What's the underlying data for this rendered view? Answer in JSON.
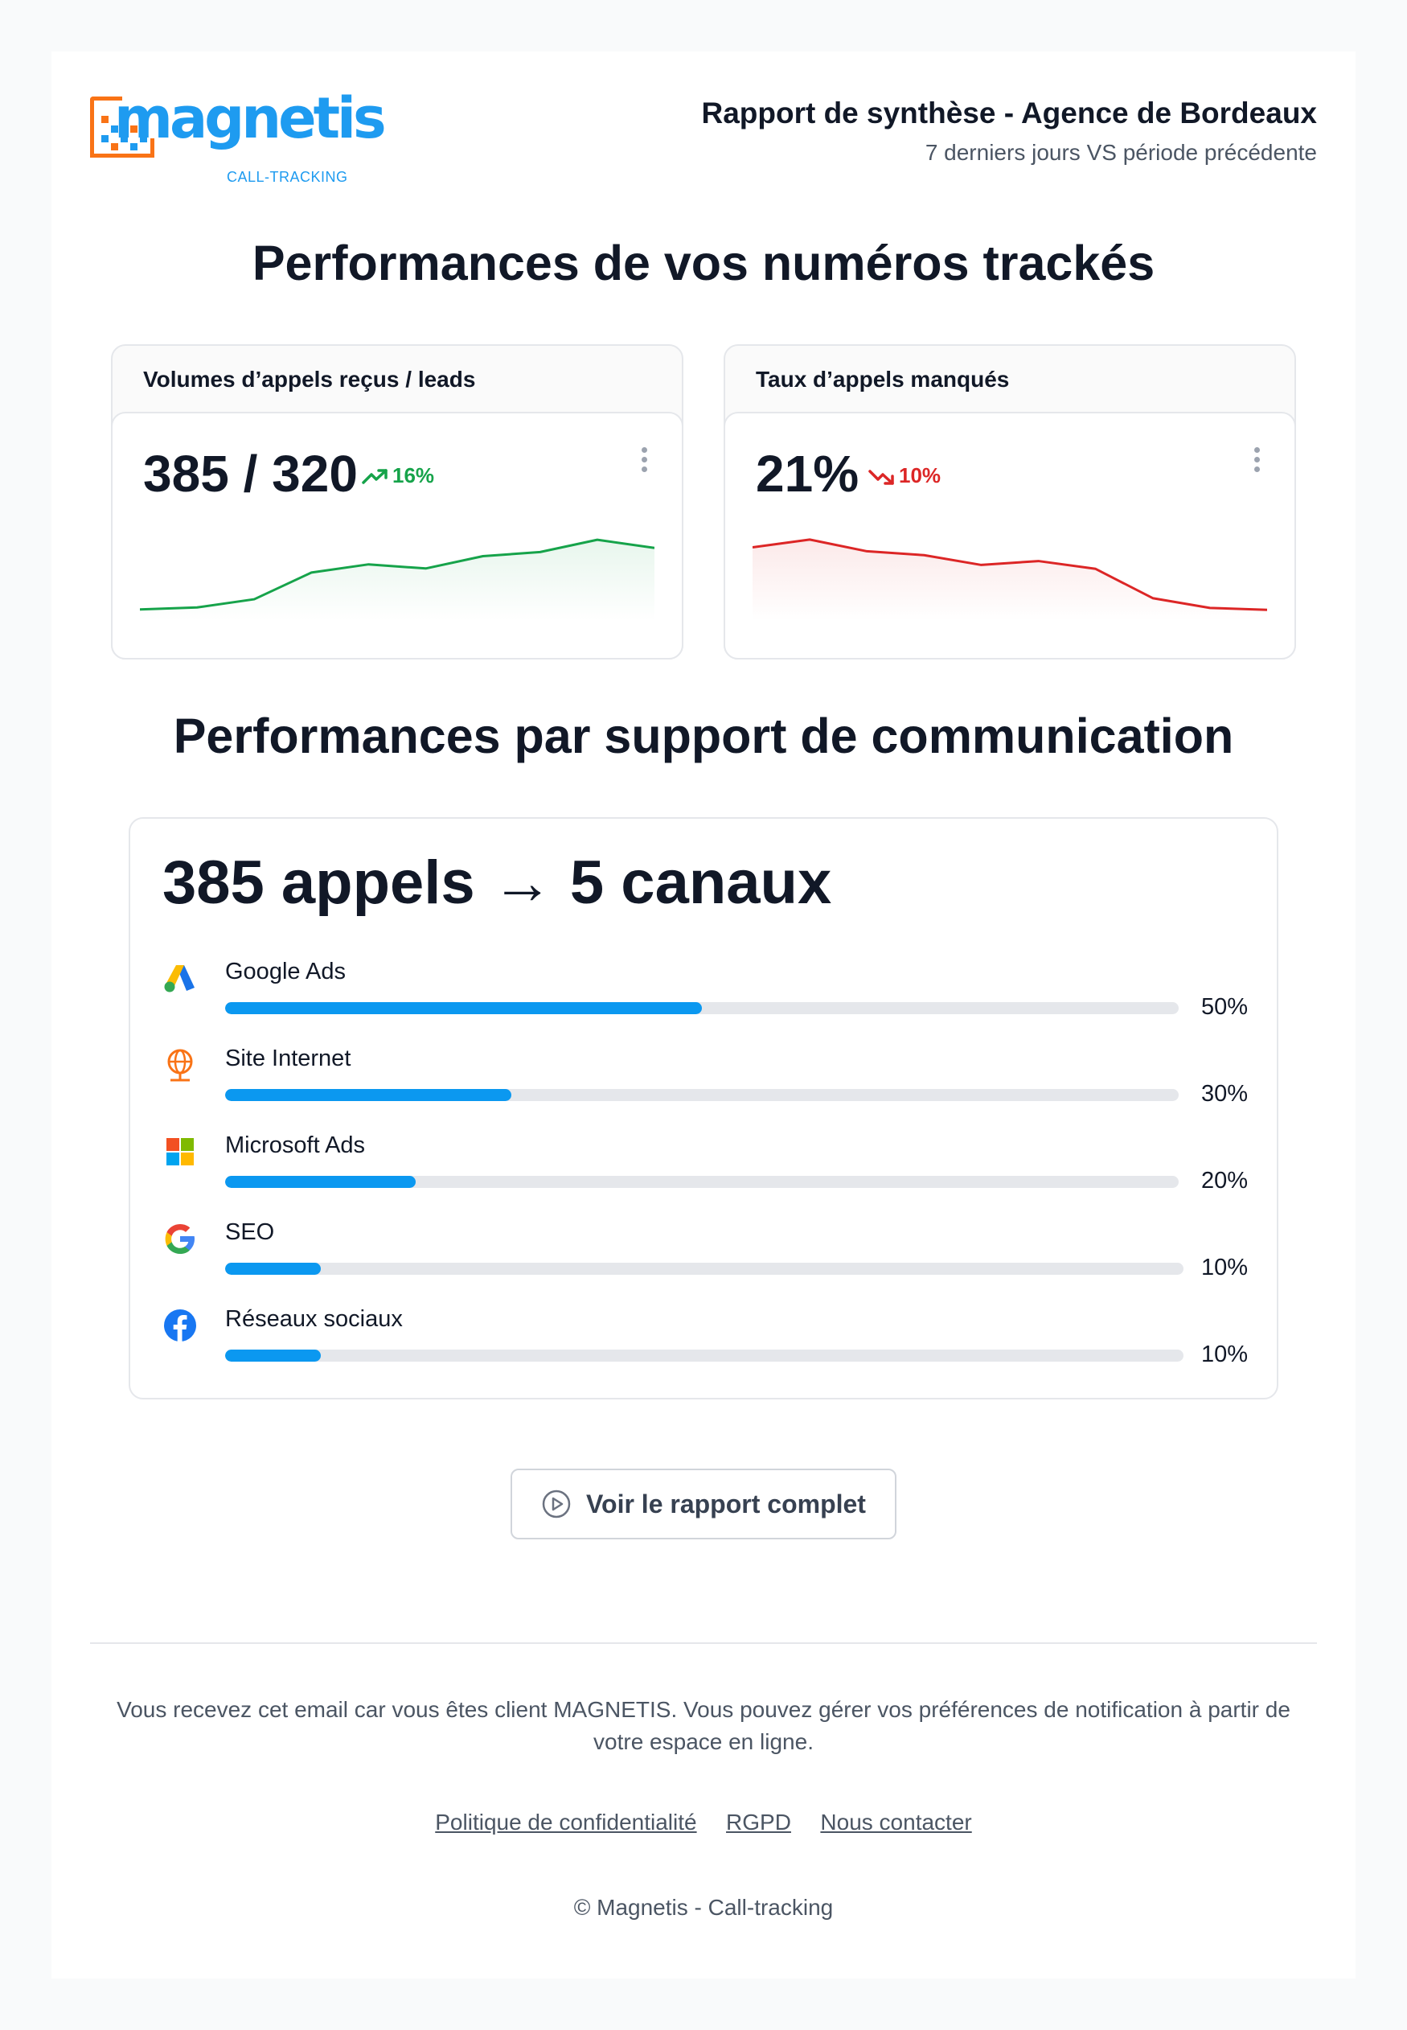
{
  "header": {
    "logo_text": "magnetis",
    "logo_tagline": "CALL-TRACKING",
    "report_title": "Rapport de synthèse - Agence de Bordeaux",
    "report_period": "7 derniers jours VS période précédente"
  },
  "section_tracked": {
    "title": "Performances de vos numéros trackés",
    "kpis": [
      {
        "label": "Volumes d’appels reçus / leads",
        "value": "385 / 320",
        "trend": "16%",
        "trend_direction": "up",
        "trend_color": "#16a34a",
        "chart_data": {
          "type": "area",
          "series": [
            {
              "name": "appels",
              "values": [
                4,
                5,
                9,
                22,
                26,
                24,
                30,
                32,
                38,
                34
              ]
            }
          ],
          "ylim": [
            0,
            40
          ]
        }
      },
      {
        "label": "Taux d’appels manqués",
        "value": "21%",
        "trend": "10%",
        "trend_direction": "down",
        "trend_color": "#dc2626",
        "chart_data": {
          "type": "area",
          "series": [
            {
              "name": "manqués",
              "values": [
                36,
                40,
                34,
                32,
                27,
                29,
                25,
                10,
                5,
                4
              ]
            }
          ],
          "ylim": [
            0,
            42
          ]
        }
      }
    ]
  },
  "section_channels": {
    "title": "Performances par support de communication",
    "summary": "385 appels → 5 canaux",
    "channels": [
      {
        "name": "Google Ads",
        "percent_label": "50%",
        "percent": 50,
        "icon": "google-ads-icon"
      },
      {
        "name": "Site Internet",
        "percent_label": "30%",
        "percent": 30,
        "icon": "globe-icon"
      },
      {
        "name": "Microsoft Ads",
        "percent_label": "20%",
        "percent": 20,
        "icon": "microsoft-icon"
      },
      {
        "name": "SEO",
        "percent_label": "10%",
        "percent": 10,
        "icon": "google-g-icon"
      },
      {
        "name": "Réseaux sociaux",
        "percent_label": "10%",
        "percent": 10,
        "icon": "facebook-icon"
      }
    ]
  },
  "cta": {
    "label": "Voir le rapport complet"
  },
  "footer": {
    "notice": "Vous recevez cet email car vous êtes client MAGNETIS. Vous pouvez gérer vos préférences de notification à partir de votre espace en ligne.",
    "links": [
      "Politique de confidentialité",
      "RGPD",
      "Nous contacter"
    ],
    "copyright": "© Magnetis - Call-tracking"
  },
  "colors": {
    "brand_blue": "#1e9bf0",
    "brand_orange": "#f97316",
    "bar_fill": "#0b98f0",
    "trend_up": "#16a34a",
    "trend_down": "#dc2626"
  }
}
